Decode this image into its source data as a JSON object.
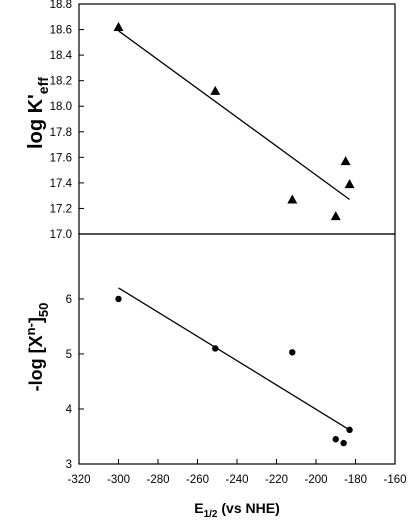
{
  "chart_data": [
    {
      "type": "scatter",
      "panel": "top",
      "marker": "triangle",
      "ylabel": "log K'",
      "ylabel_sub": "eff",
      "xlim": [
        -320,
        -160
      ],
      "ylim": [
        17.0,
        18.8
      ],
      "yticks": [
        17.0,
        17.2,
        17.4,
        17.6,
        17.8,
        18.0,
        18.2,
        18.4,
        18.6,
        18.8
      ],
      "yticklabels": [
        "17.0",
        "17.2",
        "17.4",
        "17.6",
        "17.8",
        "18.0",
        "18.2",
        "18.4",
        "18.6",
        "18.8"
      ],
      "points": [
        {
          "x": -300,
          "y": 18.62
        },
        {
          "x": -251,
          "y": 18.12
        },
        {
          "x": -212,
          "y": 17.27
        },
        {
          "x": -190,
          "y": 17.14
        },
        {
          "x": -185,
          "y": 17.57
        },
        {
          "x": -183,
          "y": 17.39
        }
      ],
      "fit_line": [
        {
          "x": -300,
          "y": 18.59
        },
        {
          "x": -183,
          "y": 17.27
        }
      ]
    },
    {
      "type": "scatter",
      "panel": "bottom",
      "marker": "circle",
      "ylabel": "-log [X",
      "ylabel_sup": "n-",
      "ylabel_suffix": "]",
      "ylabel_sub": "50",
      "xlabel": "E",
      "xlabel_sub": "1/2",
      "xlabel_suffix": " (vs NHE)",
      "xlim": [
        -320,
        -160
      ],
      "ylim": [
        3,
        7.18
      ],
      "yticks": [
        3,
        4,
        5,
        6
      ],
      "yticklabels": [
        "3",
        "4",
        "5",
        "6"
      ],
      "xticks": [
        -320,
        -300,
        -280,
        -260,
        -240,
        -220,
        -200,
        -180,
        -160
      ],
      "xticklabels": [
        "-320",
        "-300",
        "-280",
        "-260",
        "-240",
        "-220",
        "-200",
        "-180",
        "-160"
      ],
      "points": [
        {
          "x": -300,
          "y": 6.0
        },
        {
          "x": -251,
          "y": 5.1
        },
        {
          "x": -212,
          "y": 5.03
        },
        {
          "x": -190,
          "y": 3.45
        },
        {
          "x": -186,
          "y": 3.38
        },
        {
          "x": -183,
          "y": 3.62
        }
      ],
      "fit_line": [
        {
          "x": -300,
          "y": 6.2
        },
        {
          "x": -183,
          "y": 3.62
        }
      ]
    }
  ]
}
